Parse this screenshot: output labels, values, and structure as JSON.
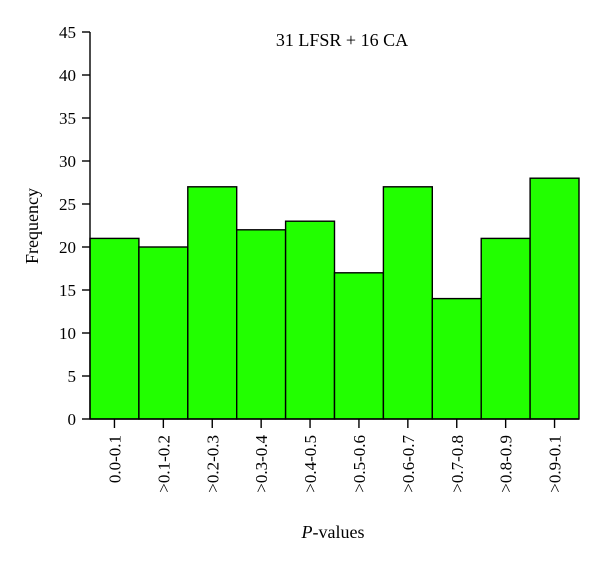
{
  "chart_data": {
    "type": "bar",
    "title": "31 LFSR + 16 CA",
    "xlabel_italic": "P",
    "xlabel_rest": "-values",
    "ylabel": "Frequency",
    "categories": [
      "0.0-0.1",
      ">0.1-0.2",
      ">0.2-0.3",
      ">0.3-0.4",
      ">0.4-0.5",
      ">0.5-0.6",
      ">0.6-0.7",
      ">0.7-0.8",
      ">0.8-0.9",
      ">0.9-0.1"
    ],
    "values": [
      21,
      20,
      27,
      22,
      23,
      17,
      27,
      14,
      21,
      28
    ],
    "ylim": [
      0,
      45
    ],
    "yticks": [
      0,
      5,
      10,
      15,
      20,
      25,
      30,
      35,
      40,
      45
    ],
    "bar_color": "#22ff00",
    "grid": false,
    "legend": "none"
  }
}
